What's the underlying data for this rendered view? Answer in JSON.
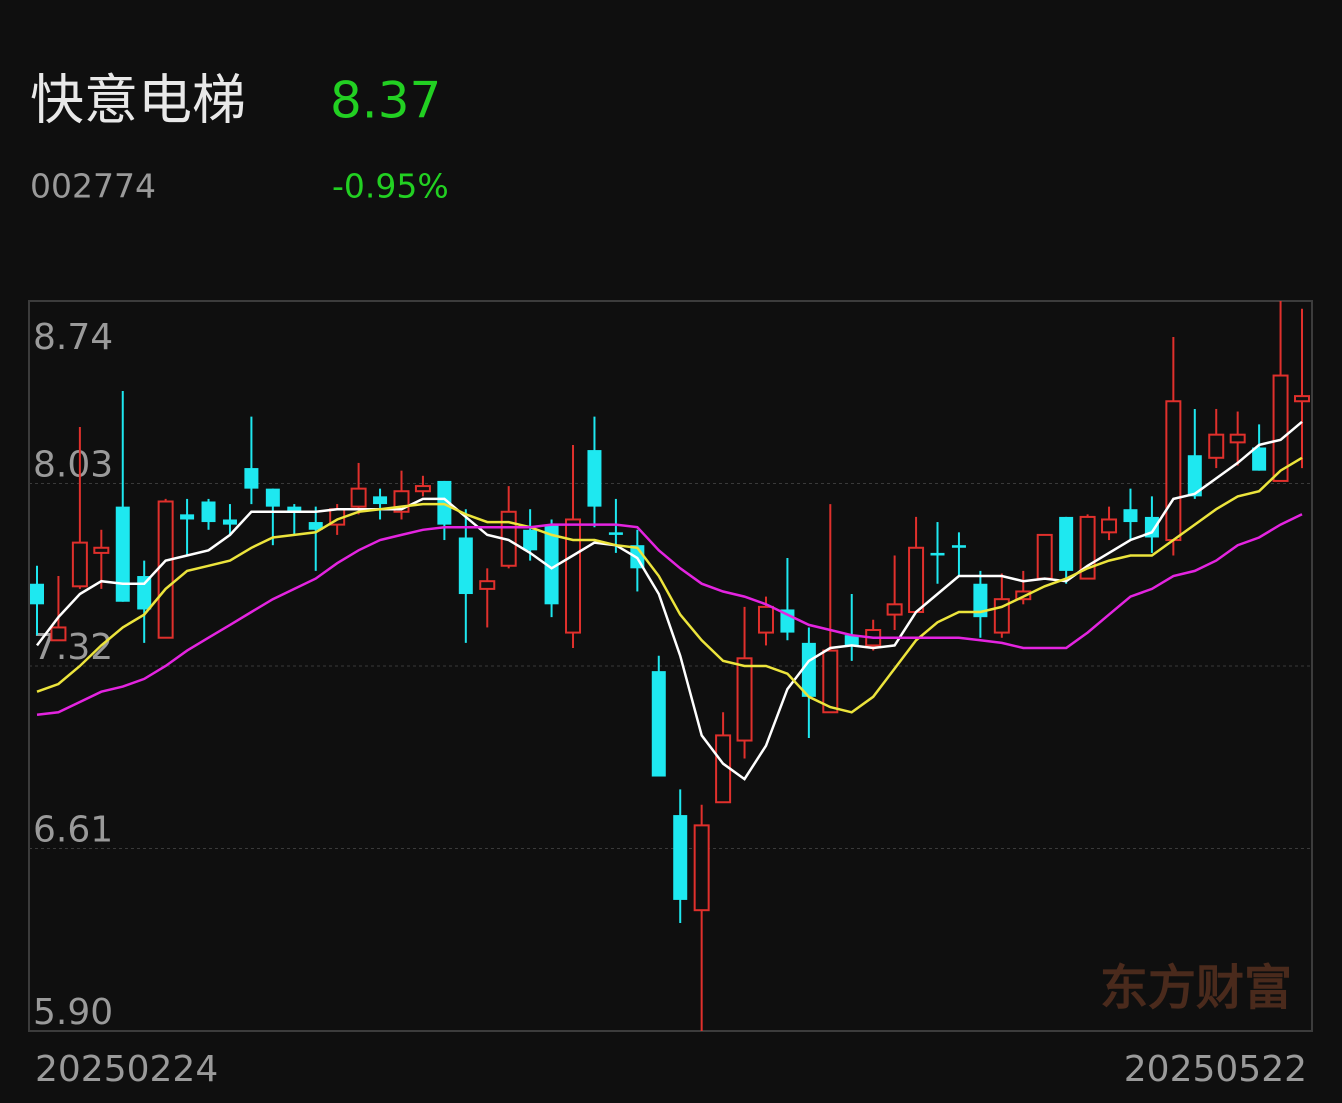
{
  "header": {
    "name": "快意电梯",
    "price": "8.37",
    "code": "002774",
    "change": "-0.95%"
  },
  "watermark": "东方财富",
  "chart_data": {
    "type": "candlestick",
    "categories": [
      "20250224",
      null,
      null,
      null,
      null,
      null,
      null,
      null,
      null,
      null,
      null,
      null,
      null,
      null,
      null,
      null,
      null,
      null,
      null,
      null,
      null,
      null,
      null,
      null,
      null,
      null,
      null,
      null,
      null,
      null,
      null,
      null,
      null,
      null,
      null,
      null,
      null,
      null,
      null,
      null,
      null,
      null,
      null,
      null,
      null,
      null,
      null,
      null,
      null,
      null,
      null,
      null,
      null,
      null,
      null,
      null,
      null,
      null,
      null,
      "20250522"
    ],
    "open": [
      7.64,
      7.42,
      7.63,
      7.76,
      7.94,
      7.67,
      7.43,
      7.91,
      7.96,
      7.89,
      8.09,
      8.01,
      7.94,
      7.88,
      7.87,
      7.94,
      7.98,
      7.92,
      8.0,
      8.04,
      7.82,
      7.62,
      7.71,
      7.85,
      7.87,
      7.45,
      8.16,
      7.84,
      7.79,
      7.3,
      6.74,
      6.37,
      6.79,
      7.03,
      7.45,
      7.54,
      7.41,
      7.14,
      7.44,
      7.4,
      7.52,
      7.53,
      7.76,
      7.79,
      7.64,
      7.45,
      7.58,
      7.66,
      7.9,
      7.66,
      7.84,
      7.93,
      7.9,
      7.81,
      8.14,
      8.13,
      8.19,
      8.17,
      8.04,
      8.35
    ],
    "high": [
      7.71,
      7.67,
      8.25,
      7.85,
      8.39,
      7.73,
      7.97,
      7.97,
      7.97,
      7.95,
      8.29,
      8.01,
      7.95,
      7.94,
      7.95,
      8.11,
      8.01,
      8.08,
      8.06,
      8.04,
      7.93,
      7.7,
      8.02,
      7.93,
      7.89,
      8.18,
      8.29,
      7.97,
      7.85,
      7.36,
      6.84,
      6.78,
      7.14,
      7.55,
      7.59,
      7.74,
      7.47,
      7.95,
      7.6,
      7.5,
      7.75,
      7.9,
      7.88,
      7.84,
      7.69,
      7.68,
      7.69,
      7.83,
      7.9,
      7.91,
      7.94,
      8.01,
      7.98,
      8.6,
      8.32,
      8.32,
      8.31,
      8.26,
      8.74,
      8.71
    ],
    "low": [
      7.44,
      7.42,
      7.62,
      7.62,
      7.57,
      7.41,
      7.43,
      7.75,
      7.85,
      7.83,
      7.95,
      7.79,
      7.83,
      7.69,
      7.83,
      7.91,
      7.89,
      7.89,
      7.98,
      7.81,
      7.41,
      7.47,
      7.7,
      7.73,
      7.51,
      7.39,
      7.86,
      7.76,
      7.61,
      6.89,
      6.32,
      5.9,
      6.79,
      6.96,
      7.4,
      7.42,
      7.04,
      7.14,
      7.34,
      7.38,
      7.46,
      7.53,
      7.64,
      7.67,
      7.43,
      7.43,
      7.56,
      7.66,
      7.64,
      7.66,
      7.81,
      7.81,
      7.76,
      7.75,
      7.97,
      8.09,
      8.1,
      8.08,
      8.04,
      8.09
    ],
    "close": [
      7.56,
      7.47,
      7.8,
      7.78,
      7.57,
      7.54,
      7.96,
      7.89,
      7.88,
      7.87,
      8.01,
      7.94,
      7.92,
      7.85,
      7.93,
      8.01,
      7.95,
      8.0,
      8.02,
      7.87,
      7.6,
      7.65,
      7.92,
      7.77,
      7.56,
      7.89,
      7.94,
      7.83,
      7.7,
      6.89,
      6.41,
      6.7,
      7.05,
      7.35,
      7.55,
      7.45,
      7.2,
      7.38,
      7.4,
      7.46,
      7.56,
      7.78,
      7.75,
      7.78,
      7.51,
      7.58,
      7.61,
      7.83,
      7.69,
      7.9,
      7.89,
      7.88,
      7.82,
      8.35,
      7.98,
      8.22,
      8.22,
      8.08,
      8.45,
      8.37
    ],
    "up_color": "#e0302c",
    "down_color": "#1ee8f0",
    "series": [
      {
        "color": "#ffffff",
        "values": [
          7.4,
          7.51,
          7.6,
          7.65,
          7.64,
          7.64,
          7.73,
          7.75,
          7.77,
          7.83,
          7.92,
          7.92,
          7.92,
          7.92,
          7.93,
          7.93,
          7.93,
          7.93,
          7.97,
          7.97,
          7.9,
          7.83,
          7.81,
          7.76,
          7.7,
          7.75,
          7.8,
          7.79,
          7.74,
          7.6,
          7.36,
          7.05,
          6.94,
          6.88,
          7.01,
          7.23,
          7.34,
          7.39,
          7.4,
          7.39,
          7.4,
          7.53,
          7.6,
          7.67,
          7.67,
          7.67,
          7.65,
          7.66,
          7.65,
          7.71,
          7.76,
          7.81,
          7.84,
          7.97,
          7.99,
          8.05,
          8.11,
          8.18,
          8.2,
          8.27
        ]
      },
      {
        "color": "#ece43c",
        "values": [
          7.22,
          7.25,
          7.32,
          7.4,
          7.47,
          7.52,
          7.62,
          7.69,
          7.71,
          7.73,
          7.78,
          7.82,
          7.83,
          7.84,
          7.89,
          7.92,
          7.93,
          7.94,
          7.95,
          7.95,
          7.91,
          7.88,
          7.88,
          7.86,
          7.83,
          7.81,
          7.81,
          7.79,
          7.78,
          7.67,
          7.52,
          7.42,
          7.34,
          7.32,
          7.32,
          7.29,
          7.2,
          7.16,
          7.14,
          7.2,
          7.31,
          7.42,
          7.49,
          7.53,
          7.53,
          7.55,
          7.59,
          7.63,
          7.66,
          7.7,
          7.73,
          7.75,
          7.75,
          7.81,
          7.87,
          7.93,
          7.98,
          8.0,
          8.08,
          8.13
        ]
      },
      {
        "color": "#e424e0",
        "values": [
          7.13,
          7.14,
          7.18,
          7.22,
          7.24,
          7.27,
          7.32,
          7.38,
          7.43,
          7.48,
          7.53,
          7.58,
          7.62,
          7.66,
          7.72,
          7.77,
          7.81,
          7.83,
          7.85,
          7.86,
          7.86,
          7.86,
          7.86,
          7.86,
          7.87,
          7.87,
          7.87,
          7.87,
          7.86,
          7.77,
          7.7,
          7.64,
          7.61,
          7.59,
          7.56,
          7.52,
          7.48,
          7.46,
          7.44,
          7.43,
          7.43,
          7.43,
          7.43,
          7.43,
          7.42,
          7.41,
          7.39,
          7.39,
          7.39,
          7.45,
          7.52,
          7.59,
          7.62,
          7.67,
          7.69,
          7.73,
          7.79,
          7.82,
          7.87,
          7.91
        ]
      }
    ],
    "ylim": [
      5.9,
      8.74
    ],
    "yticks": [
      8.74,
      8.03,
      7.32,
      6.61,
      {
        "value": 5.9,
        "label": "5.90"
      }
    ],
    "grid": true
  }
}
